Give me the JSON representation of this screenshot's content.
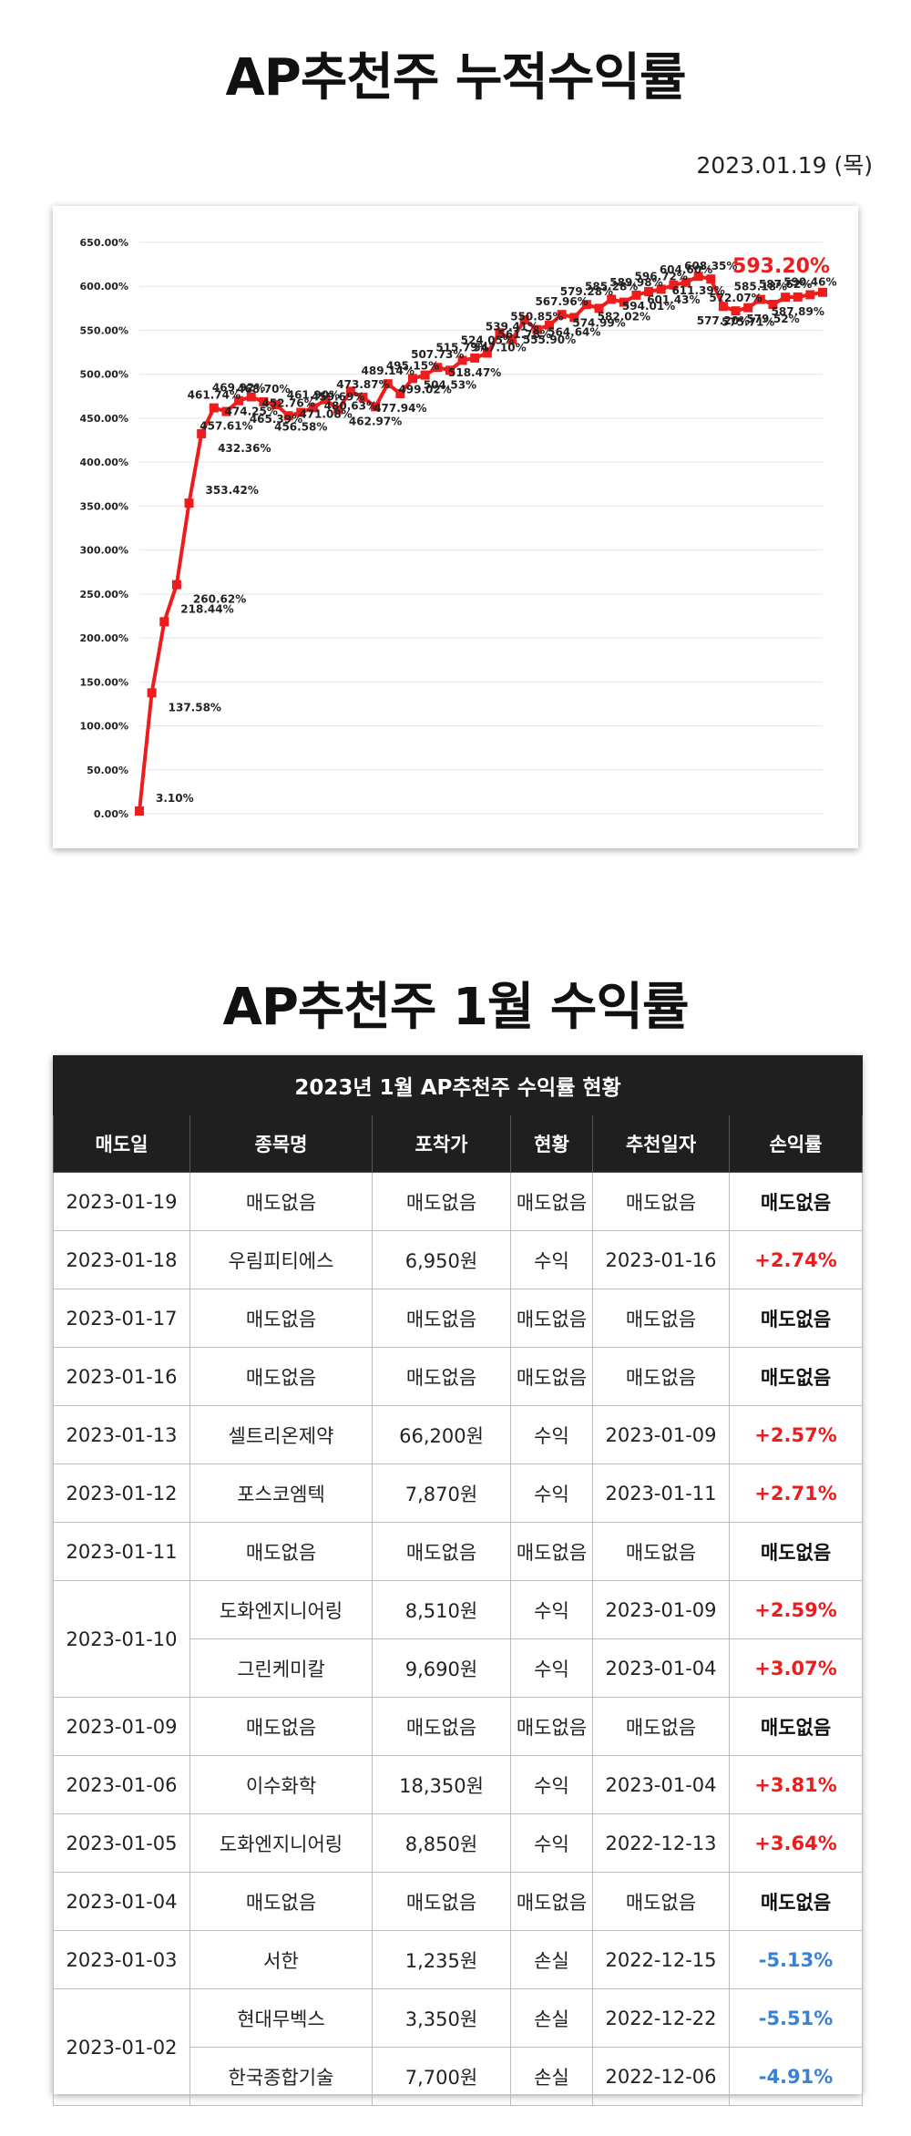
{
  "title": "AP추천주 누적수익률",
  "date": "2023.01.19 (목)",
  "table_title": "AP추천주 1월 수익률",
  "colors": {
    "line": "#ee1c1c",
    "positive": "#ee1c1c",
    "negative": "#3a82d6",
    "header_bg": "#1f1f1f"
  },
  "chart_data": {
    "type": "line",
    "title": "",
    "xlabel": "",
    "ylabel": "",
    "ylim": [
      0,
      650
    ],
    "yticks": [
      "0.00%",
      "50.00%",
      "100.00%",
      "150.00%",
      "200.00%",
      "250.00%",
      "300.00%",
      "350.00%",
      "400.00%",
      "450.00%",
      "500.00%",
      "550.00%",
      "600.00%",
      "650.00%"
    ],
    "last_value_label": "593.20%",
    "series": [
      {
        "values": [
          3.1,
          137.58,
          218.44,
          260.62,
          353.42,
          432.36,
          461.74,
          457.61,
          469.92,
          474.25,
          468.7,
          465.39,
          452.76,
          456.58,
          461.9,
          471.08,
          459.69,
          480.63,
          473.87,
          462.97,
          489.14,
          477.94,
          495.15,
          499.02,
          507.73,
          504.53,
          515.79,
          518.47,
          524.05,
          547.1,
          539.41,
          561.78,
          550.85,
          555.9,
          567.96,
          564.64,
          579.28,
          574.99,
          585.28,
          582.02,
          589.98,
          594.01,
          596.72,
          601.43,
          604.6,
          611.39,
          608.35,
          577.2,
          572.07,
          575.71,
          585.18,
          579.52,
          587.62,
          587.89,
          590.46,
          593.2
        ],
        "labels": [
          "3.10%",
          "137.58%",
          "218.44%",
          "260.62%",
          "353.42%",
          "432.36%",
          "461.74%",
          "457.61%",
          "469.92%",
          "474.25%",
          "468.70%",
          "465.39%",
          "452.76%",
          "456.58%",
          "461.90%",
          "471.08%",
          "459.69%",
          "480.63%",
          "473.87%",
          "462.97%",
          "489.14%",
          "477.94%",
          "495.15%",
          "499.02%",
          "507.73%",
          "504.53%",
          "515.79%",
          "518.47%",
          "524.05%",
          "547.10%",
          "539.41%",
          "561.78%",
          "550.85%",
          "555.90%",
          "567.96%",
          "564.64%",
          "579.28%",
          "574.99%",
          "585.28%",
          "582.02%",
          "589.98%",
          "594.01%",
          "596.72%",
          "601.43%",
          "604.60%",
          "611.39%",
          "608.35%",
          "577.20%",
          "572.07%",
          "575.71%",
          "585.18%",
          "579.52%",
          "587.62%",
          "587.89%",
          "590.46%",
          ""
        ]
      }
    ]
  },
  "table": {
    "caption": "2023년 1월 AP추천주 수익률 현황",
    "headers": [
      "매도일",
      "종목명",
      "포착가",
      "현황",
      "추천일자",
      "손익률"
    ],
    "rows": [
      {
        "sell_date": "2023-01-19",
        "name": "매도없음",
        "price": "매도없음",
        "status": "매도없음",
        "rec_date": "매도없음",
        "ret": "매도없음",
        "kind": "none",
        "span": 1
      },
      {
        "sell_date": "2023-01-18",
        "name": "우림피티에스",
        "price": "6,950원",
        "status": "수익",
        "rec_date": "2023-01-16",
        "ret": "+2.74%",
        "kind": "pos",
        "span": 1
      },
      {
        "sell_date": "2023-01-17",
        "name": "매도없음",
        "price": "매도없음",
        "status": "매도없음",
        "rec_date": "매도없음",
        "ret": "매도없음",
        "kind": "none",
        "span": 1
      },
      {
        "sell_date": "2023-01-16",
        "name": "매도없음",
        "price": "매도없음",
        "status": "매도없음",
        "rec_date": "매도없음",
        "ret": "매도없음",
        "kind": "none",
        "span": 1
      },
      {
        "sell_date": "2023-01-13",
        "name": "셀트리온제약",
        "price": "66,200원",
        "status": "수익",
        "rec_date": "2023-01-09",
        "ret": "+2.57%",
        "kind": "pos",
        "span": 1
      },
      {
        "sell_date": "2023-01-12",
        "name": "포스코엠텍",
        "price": "7,870원",
        "status": "수익",
        "rec_date": "2023-01-11",
        "ret": "+2.71%",
        "kind": "pos",
        "span": 1
      },
      {
        "sell_date": "2023-01-11",
        "name": "매도없음",
        "price": "매도없음",
        "status": "매도없음",
        "rec_date": "매도없음",
        "ret": "매도없음",
        "kind": "none",
        "span": 1
      },
      {
        "sell_date": "2023-01-10",
        "name": "도화엔지니어링",
        "price": "8,510원",
        "status": "수익",
        "rec_date": "2023-01-09",
        "ret": "+2.59%",
        "kind": "pos",
        "span": 2
      },
      {
        "sell_date": "",
        "name": "그린케미칼",
        "price": "9,690원",
        "status": "수익",
        "rec_date": "2023-01-04",
        "ret": "+3.07%",
        "kind": "pos",
        "span": 0
      },
      {
        "sell_date": "2023-01-09",
        "name": "매도없음",
        "price": "매도없음",
        "status": "매도없음",
        "rec_date": "매도없음",
        "ret": "매도없음",
        "kind": "none",
        "span": 1
      },
      {
        "sell_date": "2023-01-06",
        "name": "이수화학",
        "price": "18,350원",
        "status": "수익",
        "rec_date": "2023-01-04",
        "ret": "+3.81%",
        "kind": "pos",
        "span": 1
      },
      {
        "sell_date": "2023-01-05",
        "name": "도화엔지니어링",
        "price": "8,850원",
        "status": "수익",
        "rec_date": "2022-12-13",
        "ret": "+3.64%",
        "kind": "pos",
        "span": 1
      },
      {
        "sell_date": "2023-01-04",
        "name": "매도없음",
        "price": "매도없음",
        "status": "매도없음",
        "rec_date": "매도없음",
        "ret": "매도없음",
        "kind": "none",
        "span": 1
      },
      {
        "sell_date": "2023-01-03",
        "name": "서한",
        "price": "1,235원",
        "status": "손실",
        "rec_date": "2022-12-15",
        "ret": "-5.13%",
        "kind": "neg",
        "span": 1
      },
      {
        "sell_date": "2023-01-02",
        "name": "현대무벡스",
        "price": "3,350원",
        "status": "손실",
        "rec_date": "2022-12-22",
        "ret": "-5.51%",
        "kind": "neg",
        "span": 2
      },
      {
        "sell_date": "",
        "name": "한국종합기술",
        "price": "7,700원",
        "status": "손실",
        "rec_date": "2022-12-06",
        "ret": "-4.91%",
        "kind": "neg",
        "span": 0
      }
    ]
  }
}
